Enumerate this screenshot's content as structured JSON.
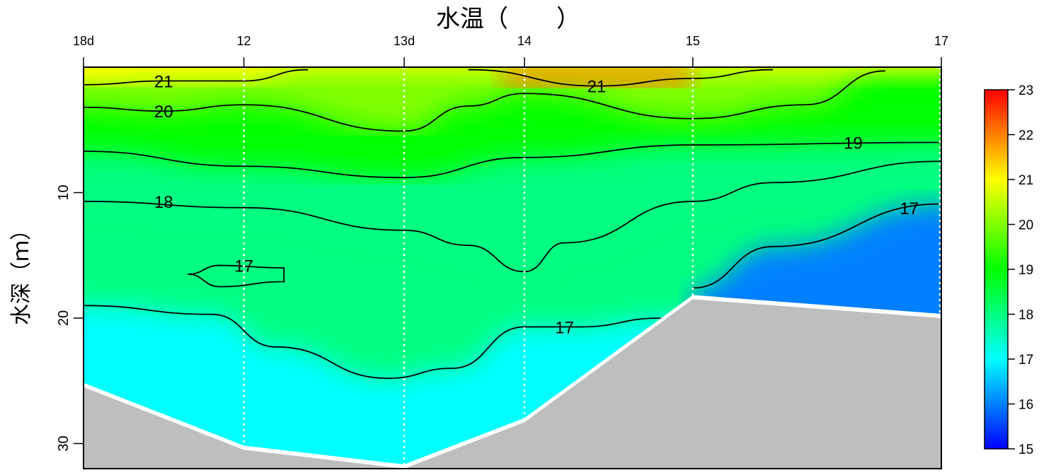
{
  "chart_data": {
    "type": "heatmap",
    "title": "水温（　　）",
    "ylabel": "水深（ｍ）",
    "xlabel": "",
    "stations": [
      {
        "label": "18d",
        "x": 0
      },
      {
        "label": "12",
        "x": 1
      },
      {
        "label": "13d",
        "x": 2
      },
      {
        "label": "14",
        "x": 2.75
      },
      {
        "label": "15",
        "x": 3.8
      },
      {
        "label": "17",
        "x": 5.35
      }
    ],
    "xlim": [
      0,
      5.35
    ],
    "ylim": [
      32,
      0
    ],
    "y_ticks": [
      10,
      20,
      30
    ],
    "y_tick_labels": [
      "10",
      "20",
      "30"
    ],
    "colorbar": {
      "min": 15,
      "max": 23,
      "ticks": [
        15,
        16,
        17,
        18,
        19,
        20,
        21,
        22,
        23
      ],
      "tick_labels": [
        "15",
        "16",
        "17",
        "18",
        "19",
        "20",
        "21",
        "22",
        "23"
      ],
      "colors": [
        "#0000ff",
        "#0080ff",
        "#00ffff",
        "#00ff80",
        "#00ff00",
        "#80ff00",
        "#ffff00",
        "#ff8000",
        "#ff0000"
      ]
    },
    "seabed": {
      "color": "#bebebe",
      "points": [
        [
          0,
          25.5
        ],
        [
          1,
          30.5
        ],
        [
          2,
          32
        ],
        [
          2.75,
          28.3
        ],
        [
          3.8,
          18.5
        ],
        [
          5.35,
          20
        ]
      ]
    },
    "contours": [
      {
        "level": 21,
        "label": "21",
        "segments": [
          [
            [
              0,
              1.4
            ],
            [
              0.5,
              1.1
            ],
            [
              1,
              1.1
            ],
            [
              1.4,
              0.2
            ]
          ],
          [
            [
              2.4,
              0.2
            ],
            [
              3.2,
              1.5
            ],
            [
              3.8,
              0.9
            ],
            [
              4.3,
              0.2
            ]
          ]
        ]
      },
      {
        "level": 20,
        "label": "20",
        "segments": [
          [
            [
              0,
              3.2
            ],
            [
              0.5,
              3.5
            ],
            [
              1,
              3.0
            ],
            [
              2,
              5.1
            ],
            [
              2.4,
              3.1
            ],
            [
              2.75,
              2.1
            ],
            [
              3.8,
              4.1
            ],
            [
              4.5,
              3.0
            ],
            [
              5.0,
              0.3
            ]
          ]
        ]
      },
      {
        "level": 19,
        "label": "19",
        "segments": [
          [
            [
              0,
              6.7
            ],
            [
              1,
              7.9
            ],
            [
              2,
              8.8
            ],
            [
              2.75,
              7.2
            ],
            [
              3.8,
              6.2
            ],
            [
              5.35,
              6.0
            ]
          ]
        ]
      },
      {
        "level": 18,
        "label": "18",
        "segments": [
          [
            [
              0,
              10.7
            ],
            [
              1,
              11.2
            ],
            [
              2,
              13.0
            ],
            [
              2.4,
              14.2
            ],
            [
              2.75,
              16.3
            ],
            [
              3.0,
              14.0
            ],
            [
              3.8,
              10.7
            ],
            [
              4.3,
              9.2
            ],
            [
              5.35,
              7.5
            ]
          ]
        ]
      },
      {
        "level": 17,
        "label": "17",
        "segments": [
          [
            [
              0,
              19.0
            ],
            [
              0.8,
              19.7
            ],
            [
              1.2,
              22.3
            ],
            [
              1.9,
              24.8
            ],
            [
              2.3,
              24.0
            ],
            [
              2.75,
              20.7
            ],
            [
              3.1,
              20.7
            ],
            [
              3.6,
              20.0
            ]
          ],
          [
            [
              3.8,
              17.6
            ],
            [
              4.3,
              14.3
            ],
            [
              5.35,
              10.9
            ]
          ],
          [
            [
              0.85,
              15.8
            ],
            [
              1.25,
              16.0
            ],
            [
              1.25,
              17.1
            ],
            [
              0.85,
              17.5
            ],
            [
              0.65,
              16.5
            ]
          ]
        ]
      }
    ],
    "grid": false,
    "station_lines": "dotted-white",
    "legend_placement": "right"
  }
}
